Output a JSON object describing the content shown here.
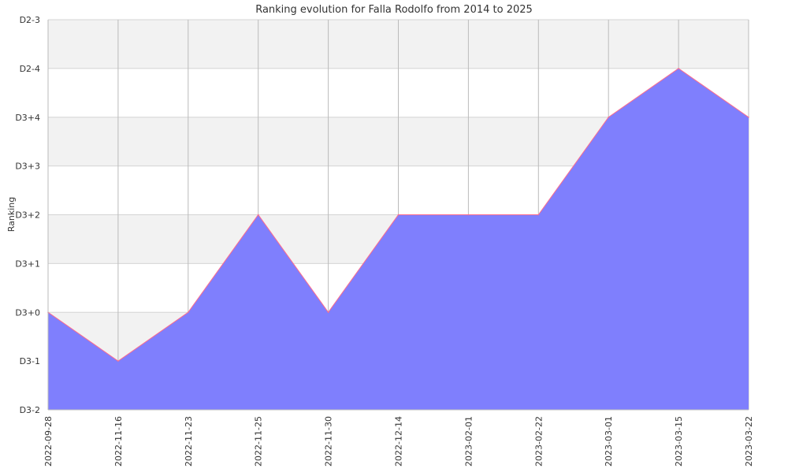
{
  "chart_data": {
    "type": "area",
    "title": "Ranking evolution for Falla Rodolfo from 2014 to 2025",
    "xlabel": "",
    "ylabel": "Ranking",
    "categories": [
      "2022-09-28",
      "2022-11-16",
      "2022-11-23",
      "2022-11-25",
      "2022-11-30",
      "2022-12-14",
      "2023-02-01",
      "2023-02-22",
      "2023-03-01",
      "2023-03-15",
      "2023-03-22"
    ],
    "y_ticks": [
      "D3-2",
      "D3-1",
      "D3+0",
      "D3+1",
      "D3+2",
      "D3+3",
      "D3+4",
      "D2-4",
      "D2-3"
    ],
    "series": [
      {
        "values": [
          "D3+0",
          "D3-1",
          "D3+0",
          "D3+2",
          "D3+0",
          "D3+2",
          "D3+2",
          "D3+2",
          "D3+4",
          "D2-4",
          "D3+4"
        ]
      }
    ],
    "ylim": [
      "D3-2",
      "D2-3"
    ],
    "grid": true,
    "band_colors": [
      "#f2f2f2",
      "#ffffff"
    ],
    "colors": {
      "fill": "#7f7ffd",
      "line": "#ff6b8c",
      "grid": "#d4d4d4",
      "axis": "#bbbbbb",
      "text": "#333333"
    }
  }
}
